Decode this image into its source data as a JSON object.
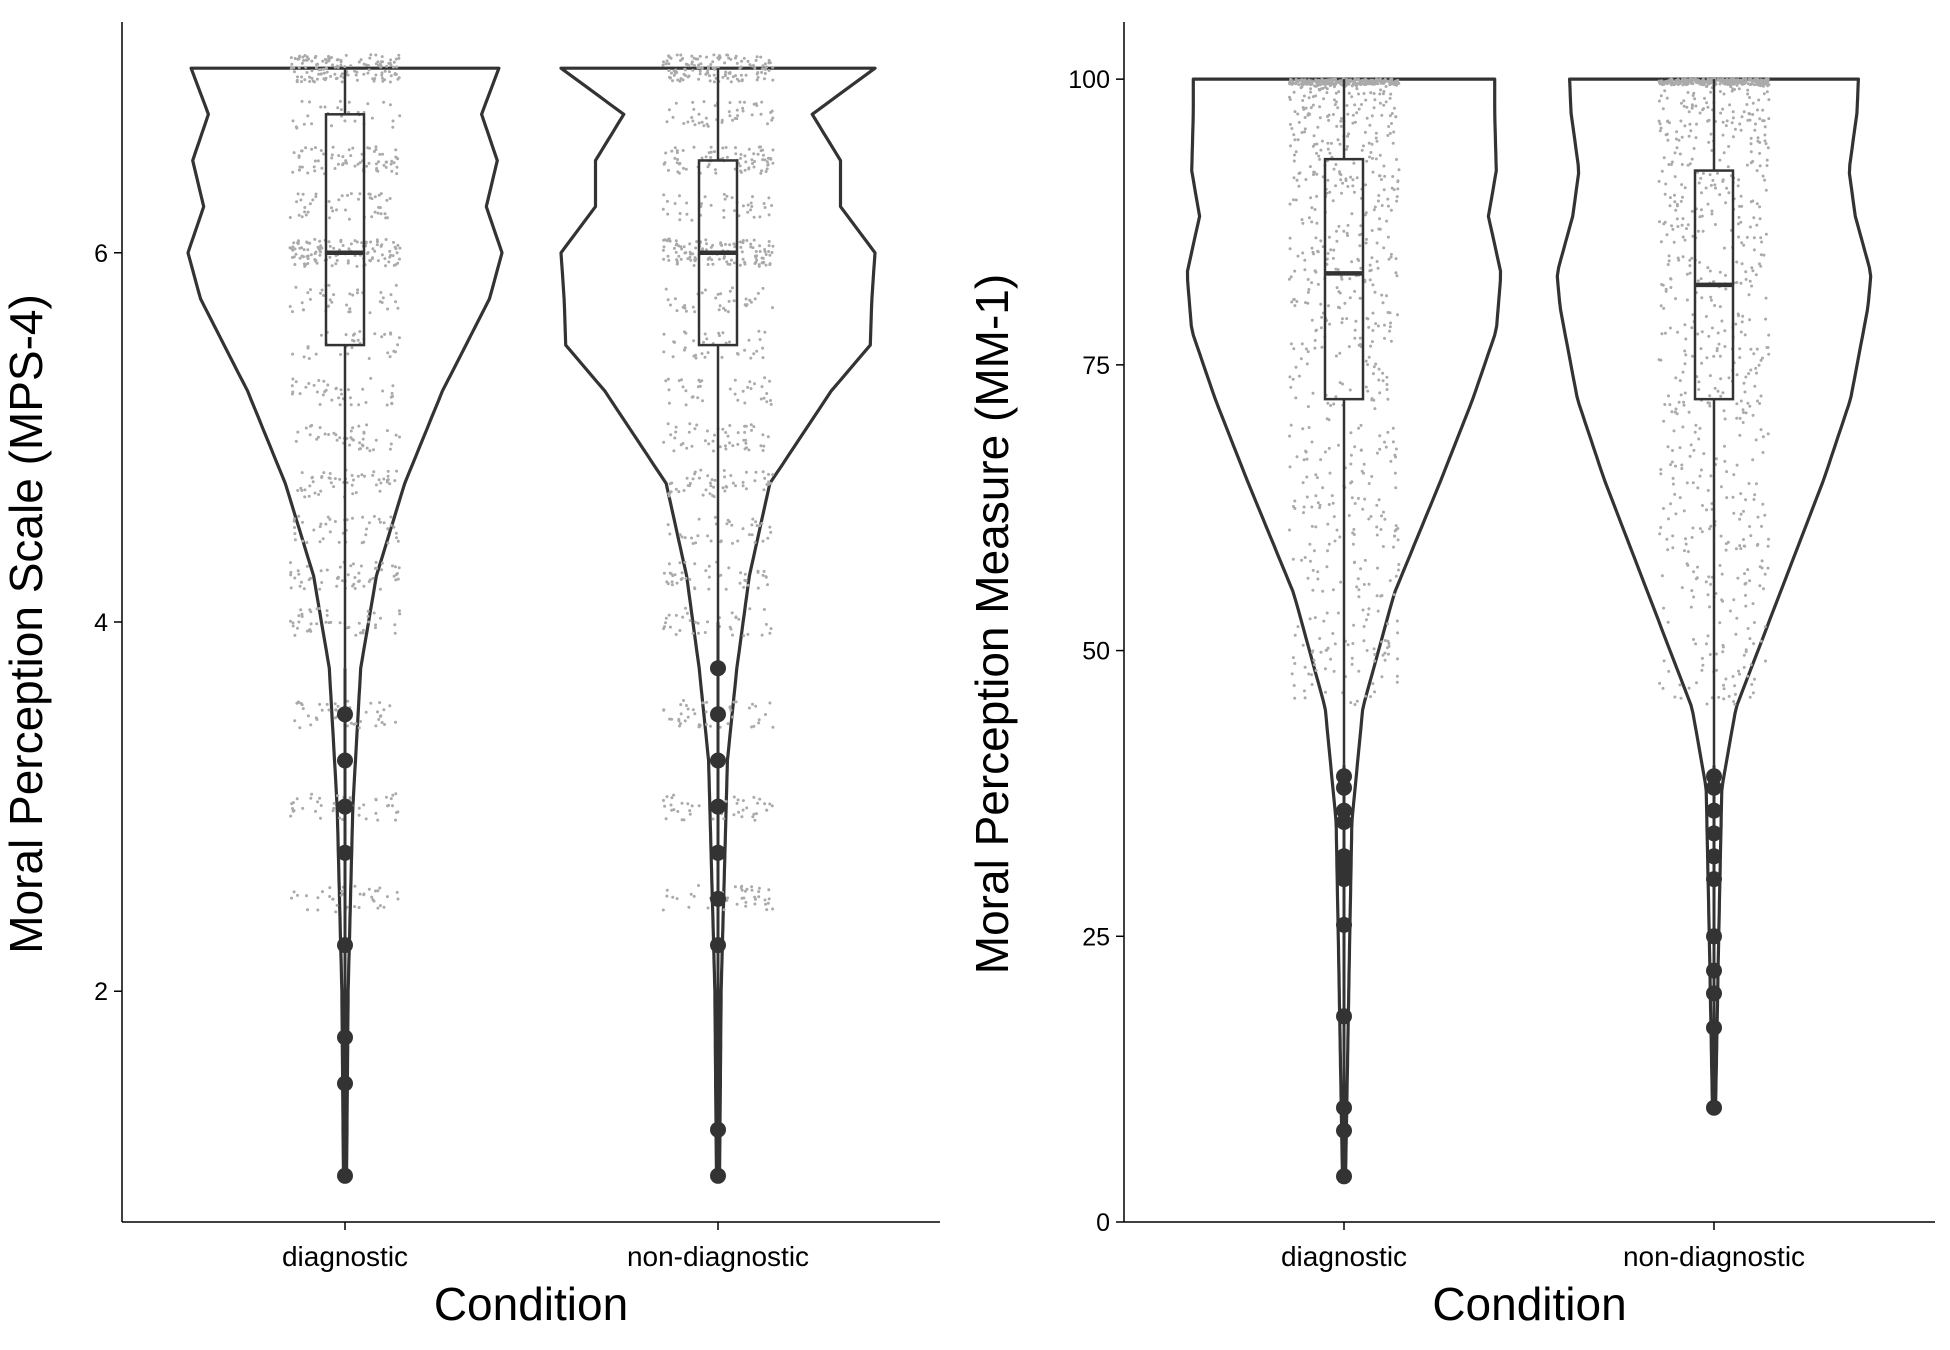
{
  "chart_data": [
    {
      "type": "violin",
      "xlabel": "Condition",
      "ylabel": "Moral Perception Scale (MPS-4)",
      "ylim": [
        0.75,
        7.25
      ],
      "yticks": [
        2,
        4,
        6
      ],
      "categories": [
        "diagnostic",
        "non-diagnostic"
      ],
      "grid": false,
      "legend": "none",
      "colors": {
        "violin_outline": "#333333",
        "jitter_points": "#aaaaaa",
        "box_and_outliers": "#333333"
      },
      "series": [
        {
          "category": "diagnostic",
          "box": {
            "lower_whisker": 3.75,
            "q1": 5.5,
            "median": 6.0,
            "q3": 6.75,
            "upper_whisker": 7.0
          },
          "outliers": [
            3.5,
            3.25,
            3.0,
            2.75,
            2.25,
            1.75,
            1.5,
            1.0
          ],
          "violin_density": [
            [
              1.0,
              0.01
            ],
            [
              2.0,
              0.02
            ],
            [
              3.0,
              0.05
            ],
            [
              3.75,
              0.1
            ],
            [
              4.25,
              0.2
            ],
            [
              4.75,
              0.38
            ],
            [
              5.25,
              0.62
            ],
            [
              5.75,
              0.92
            ],
            [
              6.0,
              1.0
            ],
            [
              6.25,
              0.9
            ],
            [
              6.5,
              0.97
            ],
            [
              6.75,
              0.87
            ],
            [
              7.0,
              0.98
            ]
          ]
        },
        {
          "category": "non-diagnostic",
          "box": {
            "lower_whisker": 4.0,
            "q1": 5.5,
            "median": 6.0,
            "q3": 6.5,
            "upper_whisker": 7.0
          },
          "outliers": [
            3.75,
            3.5,
            3.25,
            3.0,
            2.75,
            2.5,
            2.25,
            1.25,
            1.0
          ],
          "violin_density": [
            [
              1.0,
              0.01
            ],
            [
              2.0,
              0.02
            ],
            [
              3.25,
              0.06
            ],
            [
              3.75,
              0.12
            ],
            [
              4.25,
              0.2
            ],
            [
              4.75,
              0.33
            ],
            [
              5.25,
              0.72
            ],
            [
              5.5,
              0.97
            ],
            [
              5.75,
              0.98
            ],
            [
              6.0,
              1.0
            ],
            [
              6.25,
              0.78
            ],
            [
              6.5,
              0.78
            ],
            [
              6.75,
              0.6
            ],
            [
              7.0,
              1.0
            ]
          ]
        }
      ]
    },
    {
      "type": "violin",
      "xlabel": "Condition",
      "ylabel": "Moral Perception Measure (MM-1)",
      "ylim": [
        0,
        105
      ],
      "yticks": [
        0,
        25,
        50,
        75,
        100
      ],
      "categories": [
        "diagnostic",
        "non-diagnostic"
      ],
      "grid": false,
      "legend": "none",
      "colors": {
        "violin_outline": "#333333",
        "jitter_points": "#aaaaaa",
        "box_and_outliers": "#333333"
      },
      "series": [
        {
          "category": "diagnostic",
          "box": {
            "lower_whisker": 40,
            "q1": 72,
            "median": 83,
            "q3": 93,
            "upper_whisker": 100
          },
          "outliers": [
            39,
            38,
            36,
            35,
            32,
            31,
            30,
            26,
            18,
            10,
            8,
            4
          ],
          "violin_density": [
            [
              4,
              0.01
            ],
            [
              20,
              0.03
            ],
            [
              35,
              0.05
            ],
            [
              45,
              0.12
            ],
            [
              55,
              0.32
            ],
            [
              65,
              0.62
            ],
            [
              72,
              0.82
            ],
            [
              78,
              0.97
            ],
            [
              83,
              1.0
            ],
            [
              88,
              0.92
            ],
            [
              92,
              0.97
            ],
            [
              97,
              0.96
            ],
            [
              100,
              0.96
            ]
          ]
        },
        {
          "category": "non-diagnostic",
          "box": {
            "lower_whisker": 40,
            "q1": 72,
            "median": 82,
            "q3": 92,
            "upper_whisker": 100
          },
          "outliers": [
            39,
            38,
            36,
            34,
            32,
            30,
            25,
            22,
            20,
            17,
            10
          ],
          "violin_density": [
            [
              10,
              0.01
            ],
            [
              25,
              0.03
            ],
            [
              38,
              0.05
            ],
            [
              45,
              0.14
            ],
            [
              55,
              0.42
            ],
            [
              65,
              0.7
            ],
            [
              72,
              0.87
            ],
            [
              80,
              0.98
            ],
            [
              83,
              1.0
            ],
            [
              88,
              0.9
            ],
            [
              92,
              0.86
            ],
            [
              97,
              0.91
            ],
            [
              100,
              0.92
            ]
          ]
        }
      ]
    }
  ]
}
